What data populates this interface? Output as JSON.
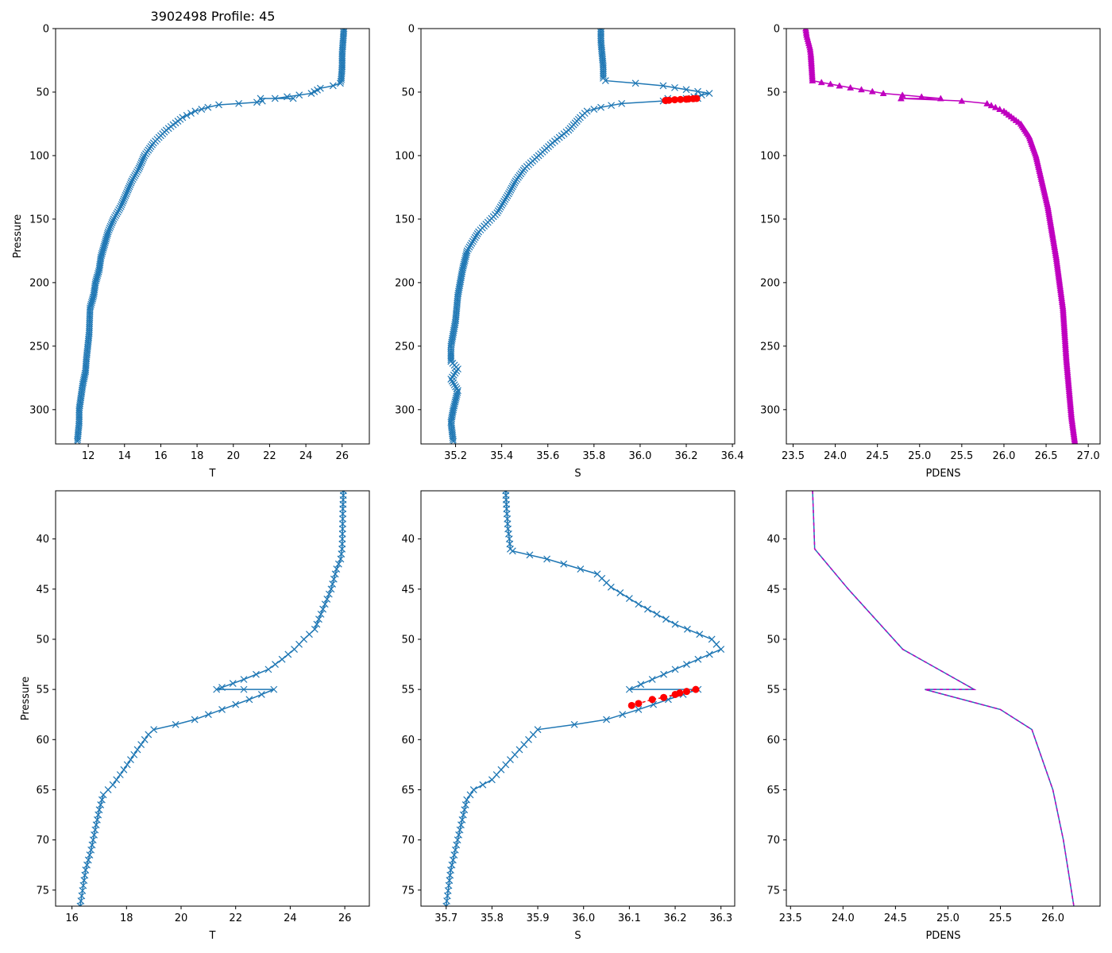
{
  "figure": {
    "title": "3902498 Profile: 45"
  },
  "colors": {
    "line": "#1f77b4",
    "flag": "#ff0000",
    "density": "#bf00bf",
    "axis": "#000000"
  },
  "chart_data": [
    {
      "id": "top-temperature",
      "type": "line",
      "xlabel": "T",
      "ylabel": "Pressure",
      "xlim": [
        10.2,
        27.5
      ],
      "ylim": [
        327,
        0
      ],
      "xticks": [
        12,
        14,
        16,
        18,
        20,
        22,
        24,
        26
      ],
      "yticks": [
        0,
        50,
        100,
        150,
        200,
        250,
        300
      ],
      "marker": "x",
      "series": [
        {
          "name": "T",
          "x": [
            26.1,
            26.05,
            26.0,
            26.0,
            25.95,
            25.9,
            25.5,
            24.8,
            24.3,
            22.3,
            23.3,
            21.5,
            21.6,
            21.3,
            20.3,
            19.2,
            18.6,
            17.9,
            17.2,
            16.3,
            15.6,
            15.1,
            14.8,
            14.4,
            14.1,
            13.8,
            13.4,
            13.1,
            12.9,
            12.7,
            12.6,
            12.4,
            12.3,
            12.1,
            12.05,
            11.9,
            11.85,
            11.7,
            11.5,
            11.5,
            11.4
          ],
          "y": [
            0,
            10,
            20,
            30,
            40,
            43,
            45,
            47,
            51,
            55,
            55,
            55,
            57,
            58,
            59,
            60,
            62,
            65,
            70,
            80,
            90,
            100,
            110,
            120,
            130,
            140,
            150,
            160,
            170,
            180,
            190,
            200,
            210,
            220,
            240,
            260,
            270,
            280,
            300,
            310,
            325
          ]
        }
      ],
      "flags": null
    },
    {
      "id": "top-salinity",
      "type": "line",
      "xlabel": "S",
      "ylabel": "",
      "xlim": [
        35.05,
        36.41
      ],
      "ylim": [
        327,
        0
      ],
      "xticks": [
        35.2,
        35.4,
        35.6,
        35.8,
        36.0,
        36.2,
        36.4
      ],
      "yticks": [
        0,
        50,
        100,
        150,
        200,
        250,
        300
      ],
      "marker": "x",
      "series": [
        {
          "name": "S",
          "x": [
            35.83,
            35.83,
            35.835,
            35.84,
            35.84,
            35.85,
            35.98,
            36.1,
            36.3,
            36.2,
            36.25,
            36.12,
            36.1,
            35.92,
            35.83,
            35.77,
            35.74,
            35.69,
            35.62,
            35.56,
            35.5,
            35.46,
            35.43,
            35.38,
            35.3,
            35.25,
            35.23,
            35.21,
            35.2,
            35.18,
            35.18,
            35.18,
            35.21,
            35.18,
            35.21,
            35.19,
            35.18,
            35.19
          ],
          "y": [
            0,
            10,
            20,
            30,
            39,
            41,
            43,
            45,
            51,
            55,
            55,
            55,
            57,
            59,
            62,
            65,
            70,
            80,
            90,
            100,
            110,
            120,
            130,
            145,
            160,
            175,
            190,
            210,
            230,
            250,
            255,
            262,
            268,
            276,
            285,
            300,
            310,
            325
          ]
        }
      ],
      "flags": {
        "name": "flagged S",
        "x": [
          36.11,
          36.125,
          36.15,
          36.175,
          36.2,
          36.21,
          36.23,
          36.245
        ],
        "y": [
          56.6,
          56.4,
          56.0,
          55.8,
          55.6,
          55.4,
          55.2,
          55.0
        ]
      }
    },
    {
      "id": "top-density",
      "type": "line",
      "xlabel": "PDENS",
      "ylabel": "",
      "xlim": [
        23.42,
        27.14
      ],
      "ylim": [
        327,
        0
      ],
      "xticks": [
        23.5,
        24.0,
        24.5,
        25.0,
        25.5,
        26.0,
        26.5,
        27.0
      ],
      "yticks": [
        0,
        50,
        100,
        150,
        200,
        250,
        300
      ],
      "marker": "triangle",
      "series": [
        {
          "name": "PDENS",
          "x": [
            23.65,
            23.66,
            23.68,
            23.7,
            23.71,
            23.72,
            23.73,
            24.05,
            24.57,
            25.25,
            24.78,
            25.5,
            25.8,
            26.0,
            26.2,
            26.3,
            26.38,
            26.45,
            26.52,
            26.57,
            26.62,
            26.66,
            26.7,
            26.72,
            26.74,
            26.76,
            26.78,
            26.8,
            26.82,
            26.84
          ],
          "y": [
            0,
            5,
            10,
            15,
            20,
            30,
            41,
            45,
            51,
            55,
            55,
            57,
            59,
            65,
            75,
            85,
            100,
            120,
            140,
            160,
            180,
            200,
            220,
            240,
            260,
            275,
            290,
            305,
            315,
            325
          ]
        }
      ],
      "flags": null
    },
    {
      "id": "bottom-temperature",
      "type": "line",
      "xlabel": "T",
      "ylabel": "Pressure",
      "xlim": [
        15.4,
        26.9
      ],
      "ylim": [
        76.6,
        35.2
      ],
      "xticks": [
        16,
        18,
        20,
        22,
        24,
        26
      ],
      "yticks": [
        40,
        45,
        50,
        55,
        60,
        65,
        70,
        75
      ],
      "marker": "x",
      "series": [
        {
          "name": "T",
          "x": [
            25.95,
            25.93,
            25.92,
            25.9,
            25.85,
            25.7,
            25.5,
            25.2,
            24.9,
            24.5,
            24.15,
            23.7,
            23.2,
            22.3,
            21.5,
            21.3,
            22.3,
            23.4,
            22.5,
            21.5,
            20.5,
            19.8,
            19.0,
            18.8,
            18.4,
            17.9,
            17.5,
            17.15,
            17.0,
            16.85,
            16.7,
            16.5,
            16.3
          ],
          "y": [
            35.2,
            37,
            39,
            41,
            42,
            43,
            45,
            47,
            49,
            50,
            51,
            52,
            53,
            54,
            54.8,
            55,
            55,
            55,
            56,
            57,
            58,
            58.5,
            59,
            59.5,
            61,
            63,
            64.5,
            65.5,
            67,
            69,
            71,
            73,
            76.6
          ]
        }
      ],
      "flags": null
    },
    {
      "id": "bottom-salinity",
      "type": "line",
      "xlabel": "S",
      "ylabel": "",
      "xlim": [
        35.645,
        36.33
      ],
      "ylim": [
        76.6,
        35.2
      ],
      "xticks": [
        35.7,
        35.8,
        35.9,
        36.0,
        36.1,
        36.2,
        36.3
      ],
      "yticks": [
        40,
        45,
        50,
        55,
        60,
        65,
        70,
        75
      ],
      "marker": "x",
      "series": [
        {
          "name": "S",
          "x": [
            35.83,
            35.832,
            35.835,
            35.838,
            35.84,
            35.845,
            35.92,
            36.03,
            36.06,
            36.12,
            36.2,
            36.28,
            36.3,
            36.2,
            36.1,
            36.25,
            36.12,
            36.05,
            35.98,
            35.9,
            35.86,
            35.83,
            35.8,
            35.76,
            35.745,
            35.74,
            35.73,
            35.72,
            35.71,
            35.7
          ],
          "y": [
            35.2,
            37,
            39,
            40,
            41,
            41.2,
            42,
            43.5,
            44.8,
            46.5,
            48.5,
            50,
            51,
            53,
            55,
            55,
            57,
            58,
            58.5,
            59,
            61,
            62.5,
            64,
            65,
            66,
            67,
            69,
            71,
            73,
            76.6
          ]
        }
      ],
      "flags": {
        "name": "flagged S",
        "x": [
          36.105,
          36.12,
          36.15,
          36.175,
          36.2,
          36.21,
          36.225,
          36.245
        ],
        "y": [
          56.6,
          56.4,
          56.0,
          55.8,
          55.5,
          55.35,
          55.2,
          55.0
        ]
      }
    },
    {
      "id": "bottom-density",
      "type": "line",
      "xlabel": "PDENS",
      "ylabel": "",
      "xlim": [
        23.46,
        26.45
      ],
      "ylim": [
        76.6,
        35.2
      ],
      "xticks": [
        23.5,
        24.0,
        24.5,
        25.0,
        25.5,
        26.0
      ],
      "yticks": [
        40,
        45,
        50,
        55,
        60,
        65,
        70,
        75
      ],
      "marker": "dashed",
      "series": [
        {
          "name": "PDENS",
          "x": [
            23.71,
            23.72,
            23.73,
            24.05,
            24.57,
            25.25,
            24.78,
            25.5,
            25.8,
            26.0,
            26.1,
            26.2
          ],
          "y": [
            35.2,
            38,
            41,
            45,
            51,
            55,
            55,
            57,
            59,
            65,
            70,
            76.6
          ]
        }
      ],
      "flags": null
    }
  ]
}
